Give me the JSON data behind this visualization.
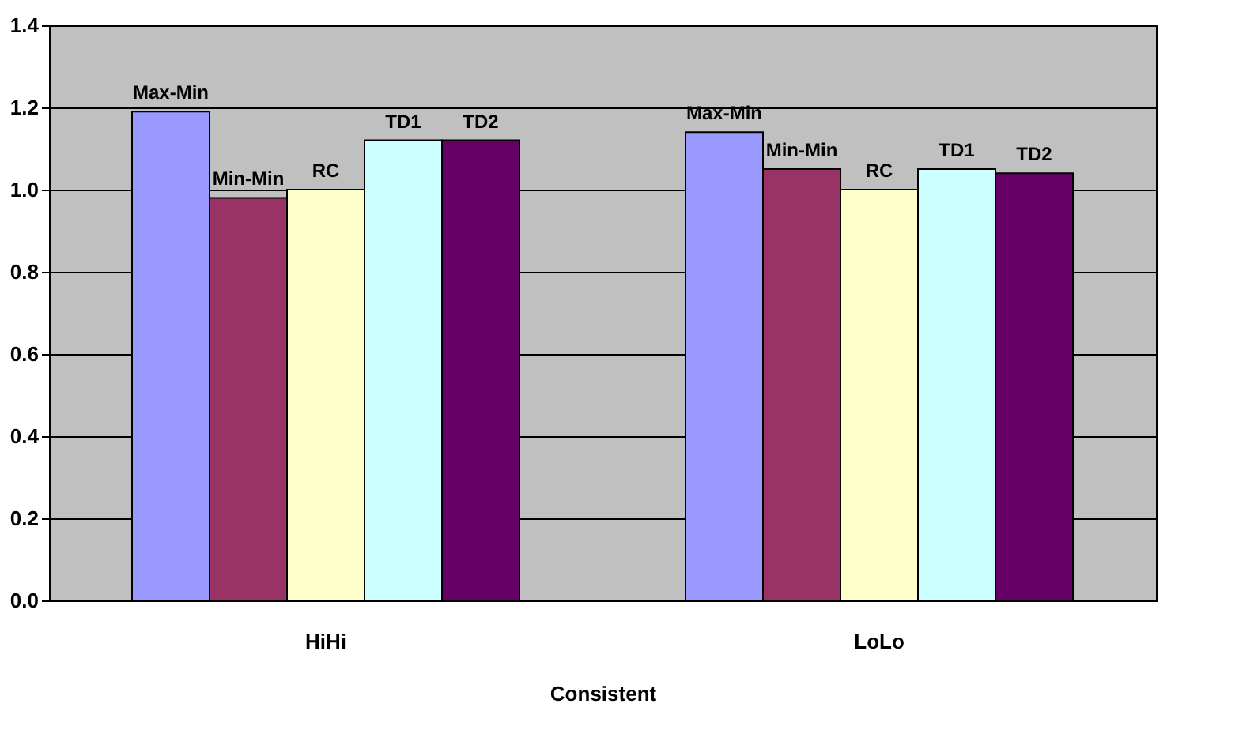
{
  "chart_data": {
    "type": "bar",
    "xlabel": "Consistent",
    "categories": [
      "HiHi",
      "LoLo"
    ],
    "series": [
      {
        "name": "Max-Min",
        "color": "#9999ff",
        "values": [
          1.19,
          1.14
        ]
      },
      {
        "name": "Min-Min",
        "color": "#993366",
        "values": [
          0.98,
          1.05
        ]
      },
      {
        "name": "RC",
        "color": "#ffffcc",
        "values": [
          1.0,
          1.0
        ]
      },
      {
        "name": "TD1",
        "color": "#ccffff",
        "values": [
          1.12,
          1.05
        ]
      },
      {
        "name": "TD2",
        "color": "#660066",
        "values": [
          1.12,
          1.04
        ]
      }
    ],
    "ylim": [
      0,
      1.4
    ],
    "yticks": [
      {
        "value": 0,
        "label": "0.0"
      },
      0.2,
      0.4,
      0.6,
      0.8,
      {
        "value": 1,
        "label": "1.0"
      },
      1.2,
      1.4
    ],
    "grid": "y",
    "legend": false
  }
}
